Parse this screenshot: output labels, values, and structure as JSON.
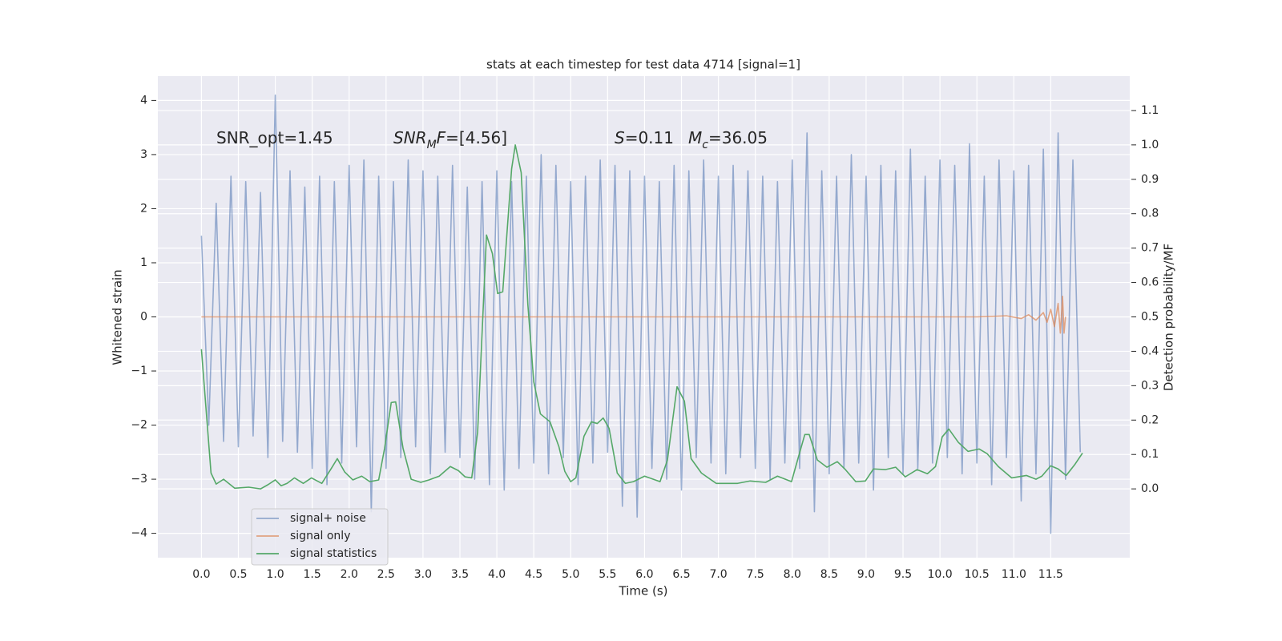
{
  "chart_data": {
    "type": "line",
    "title": "stats at each timestep for test data 4714 [signal=1]",
    "x_label": "Time (s)",
    "y_label": "Whitened strain",
    "y2_label": "Detection probability/MF",
    "xlim": [
      -0.59,
      12.57
    ],
    "ylim": [
      -4.45,
      4.45
    ],
    "y2lim": [
      -0.2,
      1.2
    ],
    "xticks": [
      {
        "value": 0,
        "label": "0.0"
      },
      0.5,
      {
        "value": 1,
        "label": "1.0"
      },
      1.5,
      {
        "value": 2,
        "label": "2.0"
      },
      2.5,
      {
        "value": 3,
        "label": "3.0"
      },
      3.5,
      {
        "value": 4,
        "label": "4.0"
      },
      4.5,
      {
        "value": 5,
        "label": "5.0"
      },
      5.5,
      {
        "value": 6,
        "label": "6.0"
      },
      6.5,
      {
        "value": 7,
        "label": "7.0"
      },
      7.5,
      {
        "value": 8,
        "label": "8.0"
      },
      8.5,
      {
        "value": 9,
        "label": "9.0"
      },
      9.5,
      {
        "value": 10,
        "label": "10.0"
      },
      10.5,
      {
        "value": 11,
        "label": "11.0"
      },
      11.5
    ],
    "yticks": [
      {
        "value": -4,
        "label": "−4"
      },
      {
        "value": -3,
        "label": "−3"
      },
      {
        "value": -2,
        "label": "−2"
      },
      {
        "value": -1,
        "label": "−1"
      },
      0,
      1,
      2,
      3,
      4
    ],
    "y2ticks": [
      {
        "value": 0,
        "label": "0.0"
      },
      0.1,
      0.2,
      0.3,
      0.4,
      0.5,
      0.6,
      0.7,
      0.8,
      0.9,
      {
        "value": 1,
        "label": "1.0"
      },
      1.1
    ],
    "grid": true,
    "background": "#eaeaf2",
    "legend": "lower left",
    "annotations": [
      {
        "segments": [
          {
            "text": "SNR_opt=1.45"
          }
        ]
      },
      {
        "segments": [
          {
            "text": "SNR",
            "style": "italic"
          },
          {
            "text": "M",
            "style": "italic-sub"
          },
          {
            "text": "F",
            "style": "italic"
          },
          {
            "text": "=[4.56]"
          }
        ]
      },
      {
        "segments": [
          {
            "text": "S",
            "style": "italic"
          },
          {
            "text": "=0.11"
          }
        ]
      },
      {
        "segments": [
          {
            "text": "M",
            "style": "italic"
          },
          {
            "text": "c",
            "style": "italic-sub"
          },
          {
            "text": "=36.05"
          }
        ]
      }
    ],
    "series": [
      {
        "name": "signal+ noise",
        "color": "#4c72b0",
        "alpha": 0.55,
        "x": [
          0,
          0.1,
          0.2,
          0.3,
          0.4,
          0.5,
          0.6,
          0.7,
          0.8,
          0.9,
          1,
          1.1,
          1.2,
          1.3,
          1.4,
          1.5,
          1.6,
          1.7,
          1.8,
          1.9,
          2,
          2.1,
          2.2,
          2.3,
          2.4,
          2.5,
          2.6,
          2.7,
          2.8,
          2.9,
          3,
          3.1,
          3.2,
          3.3,
          3.4,
          3.5,
          3.6,
          3.7,
          3.8,
          3.9,
          4,
          4.1,
          4.2,
          4.3,
          4.4,
          4.5,
          4.6,
          4.7,
          4.8,
          4.9,
          5,
          5.1,
          5.2,
          5.3,
          5.4,
          5.5,
          5.6,
          5.7,
          5.8,
          5.9,
          6,
          6.1,
          6.2,
          6.3,
          6.4,
          6.5,
          6.6,
          6.7,
          6.8,
          6.9,
          7,
          7.1,
          7.2,
          7.3,
          7.4,
          7.5,
          7.6,
          7.7,
          7.8,
          7.9,
          8,
          8.1,
          8.2,
          8.3,
          8.4,
          8.5,
          8.6,
          8.7,
          8.8,
          8.9,
          9,
          9.1,
          9.2,
          9.3,
          9.4,
          9.5,
          9.6,
          9.7,
          9.8,
          9.9,
          10,
          10.1,
          10.2,
          10.3,
          10.4,
          10.5,
          10.6,
          10.7,
          10.8,
          10.9,
          11,
          11.1,
          11.2,
          11.3,
          11.4,
          11.5,
          11.6,
          11.7,
          11.8,
          11.9
        ],
        "values": [
          1.5,
          -2.0,
          2.1,
          -2.3,
          2.6,
          -2.4,
          2.5,
          -2.2,
          2.3,
          -2.6,
          4.1,
          -2.3,
          2.7,
          -2.5,
          2.4,
          -2.8,
          2.6,
          -3.1,
          2.5,
          -2.7,
          2.8,
          -2.4,
          2.9,
          -3.6,
          2.6,
          -2.8,
          2.5,
          -2.6,
          2.9,
          -2.4,
          2.7,
          -2.9,
          2.6,
          -2.5,
          2.8,
          -2.6,
          2.4,
          -3.0,
          2.5,
          -3.1,
          2.7,
          -3.2,
          2.5,
          -2.8,
          2.6,
          -2.7,
          3.0,
          -2.9,
          2.8,
          -2.6,
          2.5,
          -3.1,
          2.6,
          -2.7,
          2.9,
          -2.5,
          2.8,
          -3.5,
          2.7,
          -3.7,
          2.6,
          -2.8,
          2.5,
          -3.0,
          2.8,
          -3.2,
          2.7,
          -2.6,
          2.9,
          -2.7,
          2.6,
          -2.9,
          2.8,
          -2.6,
          2.7,
          -2.8,
          2.6,
          -3.0,
          2.5,
          -2.7,
          2.9,
          -2.8,
          3.4,
          -3.6,
          2.7,
          -2.9,
          2.6,
          -2.8,
          3.0,
          -2.7,
          2.6,
          -3.2,
          2.8,
          -2.6,
          2.7,
          -2.9,
          3.1,
          -2.8,
          2.6,
          -2.7,
          2.9,
          -2.6,
          2.8,
          -2.9,
          3.2,
          -2.7,
          2.6,
          -3.1,
          2.9,
          -2.6,
          2.7,
          -3.4,
          2.8,
          -2.9,
          3.1,
          -4.0,
          3.4,
          -3.0,
          2.9,
          -2.5
        ]
      },
      {
        "name": "signal only",
        "color": "#dd8452",
        "alpha": 0.7,
        "x": [
          0,
          10.5,
          10.9,
          11.1,
          11.2,
          11.3,
          11.4,
          11.45,
          11.5,
          11.55,
          11.6,
          11.63,
          11.66,
          11.68,
          11.7
        ],
        "values": [
          0,
          0,
          0.02,
          -0.03,
          0.04,
          -0.06,
          0.08,
          -0.1,
          0.14,
          -0.18,
          0.25,
          -0.3,
          0.38,
          -0.3,
          0
        ]
      },
      {
        "name": "signal statistics",
        "color": "#55a868",
        "alpha": 1,
        "axis": "y2",
        "x": [
          0,
          0.13,
          0.2,
          0.3,
          0.45,
          0.64,
          0.8,
          0.9,
          1.0,
          1.08,
          1.16,
          1.26,
          1.38,
          1.49,
          1.63,
          1.76,
          1.84,
          1.94,
          2.05,
          2.17,
          2.28,
          2.4,
          2.48,
          2.57,
          2.63,
          2.73,
          2.84,
          2.97,
          3.08,
          3.22,
          3.37,
          3.48,
          3.57,
          3.66,
          3.74,
          3.86,
          3.94,
          4.01,
          4.08,
          4.2,
          4.25,
          4.33,
          4.42,
          4.5,
          4.59,
          4.72,
          4.84,
          4.92,
          5.0,
          5.07,
          5.18,
          5.28,
          5.36,
          5.44,
          5.52,
          5.63,
          5.74,
          5.85,
          6.0,
          6.21,
          6.31,
          6.44,
          6.54,
          6.63,
          6.77,
          6.97,
          7.26,
          7.43,
          7.64,
          7.8,
          7.99,
          8.08,
          8.17,
          8.23,
          8.34,
          8.47,
          8.61,
          8.72,
          8.86,
          8.99,
          9.1,
          9.26,
          9.4,
          9.53,
          9.69,
          9.83,
          9.94,
          10.03,
          10.12,
          10.25,
          10.38,
          10.53,
          10.64,
          10.79,
          10.97,
          11.17,
          11.3,
          11.38,
          11.5,
          11.6,
          11.71,
          11.83,
          11.93
        ],
        "values": [
          0.406,
          0.046,
          0.014,
          0.028,
          0.002,
          0.005,
          0.0,
          0.012,
          0.026,
          0.009,
          0.016,
          0.032,
          0.016,
          0.032,
          0.016,
          0.06,
          0.088,
          0.049,
          0.026,
          0.037,
          0.021,
          0.026,
          0.118,
          0.251,
          0.253,
          0.118,
          0.028,
          0.019,
          0.026,
          0.037,
          0.065,
          0.053,
          0.035,
          0.032,
          0.165,
          0.738,
          0.684,
          0.568,
          0.573,
          0.93,
          1.0,
          0.919,
          0.536,
          0.311,
          0.218,
          0.195,
          0.123,
          0.051,
          0.021,
          0.032,
          0.153,
          0.195,
          0.19,
          0.206,
          0.176,
          0.046,
          0.016,
          0.021,
          0.037,
          0.021,
          0.084,
          0.297,
          0.255,
          0.088,
          0.046,
          0.016,
          0.016,
          0.023,
          0.019,
          0.037,
          0.021,
          0.09,
          0.158,
          0.158,
          0.084,
          0.063,
          0.079,
          0.056,
          0.021,
          0.023,
          0.058,
          0.056,
          0.063,
          0.035,
          0.056,
          0.044,
          0.065,
          0.151,
          0.174,
          0.135,
          0.109,
          0.116,
          0.102,
          0.065,
          0.032,
          0.039,
          0.028,
          0.037,
          0.067,
          0.058,
          0.039,
          0.072,
          0.104
        ]
      }
    ]
  }
}
